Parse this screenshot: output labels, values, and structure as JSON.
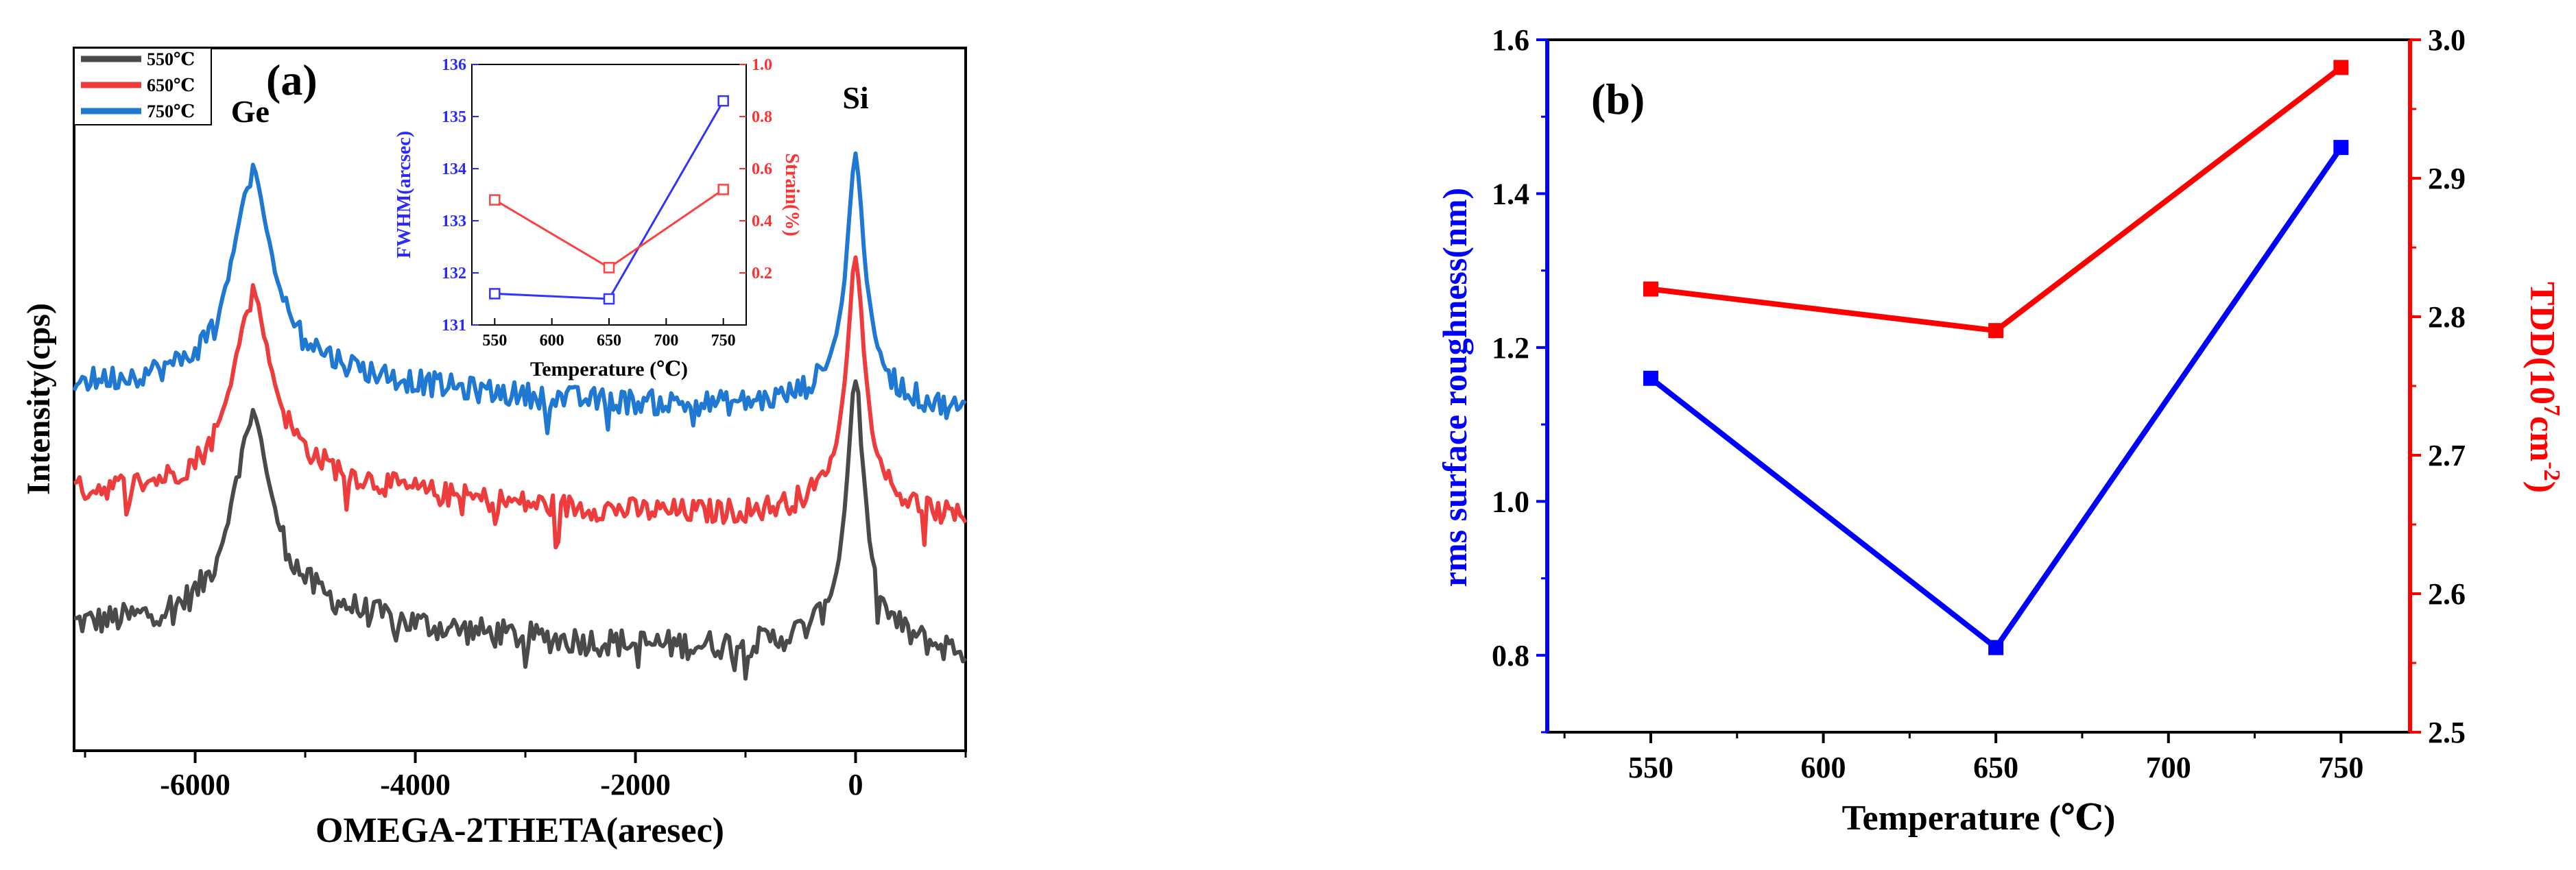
{
  "figure": {
    "colors": {
      "black": "#4a4a4a",
      "red": "#ee3b3b",
      "blue": "#1f78d1",
      "red2": "#ff0000",
      "blue2": "#0000ff"
    }
  },
  "chart_data": [
    {
      "type": "line",
      "panel_label": "(a)",
      "xlabel": "OMEGA-2THETA(aresec)",
      "ylabel": "Intensity(cps)",
      "xlim": [
        -7100,
        1000
      ],
      "x_ticks": [
        -6000,
        -4000,
        -2000,
        0
      ],
      "x_tick_labels": [
        "-6000",
        "-4000",
        "-2000",
        "0"
      ],
      "peak_labels": [
        {
          "text": "Ge",
          "x": -5500
        },
        {
          "text": "Si",
          "x": 0
        }
      ],
      "ge_peak_position": -5500,
      "si_peak_position": 0,
      "legend": [
        "550℃",
        "650℃",
        "750℃"
      ],
      "series": [
        {
          "name": "550℃",
          "color": "#4a4a4a",
          "baseline": 0.08,
          "ge_height": 0.62,
          "si_height": 0.8,
          "noise": 0.035
        },
        {
          "name": "650℃",
          "color": "#ee3b3b",
          "baseline": 0.4,
          "ge_height": 0.9,
          "si_height": 1.08,
          "noise": 0.03
        },
        {
          "name": "750℃",
          "color": "#1f78d1",
          "baseline": 0.66,
          "ge_height": 1.2,
          "si_height": 1.32,
          "noise": 0.03
        }
      ],
      "inset": {
        "xlabel": "Temperature (℃)",
        "ylabel_left": "FWHM(arcsec)",
        "ylabel_right": "Strain(%)",
        "x": [
          550,
          650,
          750
        ],
        "x_ticks": [
          550,
          600,
          650,
          700,
          750
        ],
        "xlim": [
          530,
          770
        ],
        "ylim_left": [
          131,
          136
        ],
        "yticks_left": [
          131,
          132,
          133,
          134,
          135,
          136
        ],
        "ylim_right": [
          0.0,
          1.0
        ],
        "yticks_right": [
          "0.2",
          "0.4",
          "0.6",
          "0.8",
          "1.0"
        ],
        "series": [
          {
            "name": "FWHM",
            "axis": "left",
            "color": "#3333ff",
            "values": [
              131.6,
              131.5,
              135.3
            ]
          },
          {
            "name": "Strain",
            "axis": "right",
            "color": "#ff4040",
            "values": [
              0.48,
              0.22,
              0.52
            ]
          }
        ]
      }
    },
    {
      "type": "line",
      "panel_label": "(b)",
      "xlabel": "Temperature (℃)",
      "ylabel_left": "rms surface roughness(nm)",
      "ylabel_right_base": "TDD(10",
      "ylabel_right_sup1": "7",
      "ylabel_right_mid": "cm",
      "ylabel_right_sup2": "-2",
      "ylabel_right_end": ")",
      "x": [
        550,
        650,
        750
      ],
      "x_ticks": [
        550,
        600,
        650,
        700,
        750
      ],
      "xlim": [
        520,
        770
      ],
      "ylim_left": [
        0.7,
        1.6
      ],
      "yticks_left": [
        "0.8",
        "1.0",
        "1.2",
        "1.4",
        "1.6"
      ],
      "ylim_right": [
        2.5,
        3.0
      ],
      "yticks_right": [
        "2.5",
        "2.6",
        "2.7",
        "2.8",
        "2.9",
        "3.0"
      ],
      "series": [
        {
          "name": "rms surface roughness",
          "axis": "left",
          "color": "#0000ff",
          "values": [
            1.16,
            0.81,
            1.46
          ]
        },
        {
          "name": "TDD",
          "axis": "right",
          "color": "#ff0000",
          "values": [
            2.82,
            2.79,
            2.98
          ]
        }
      ]
    }
  ]
}
